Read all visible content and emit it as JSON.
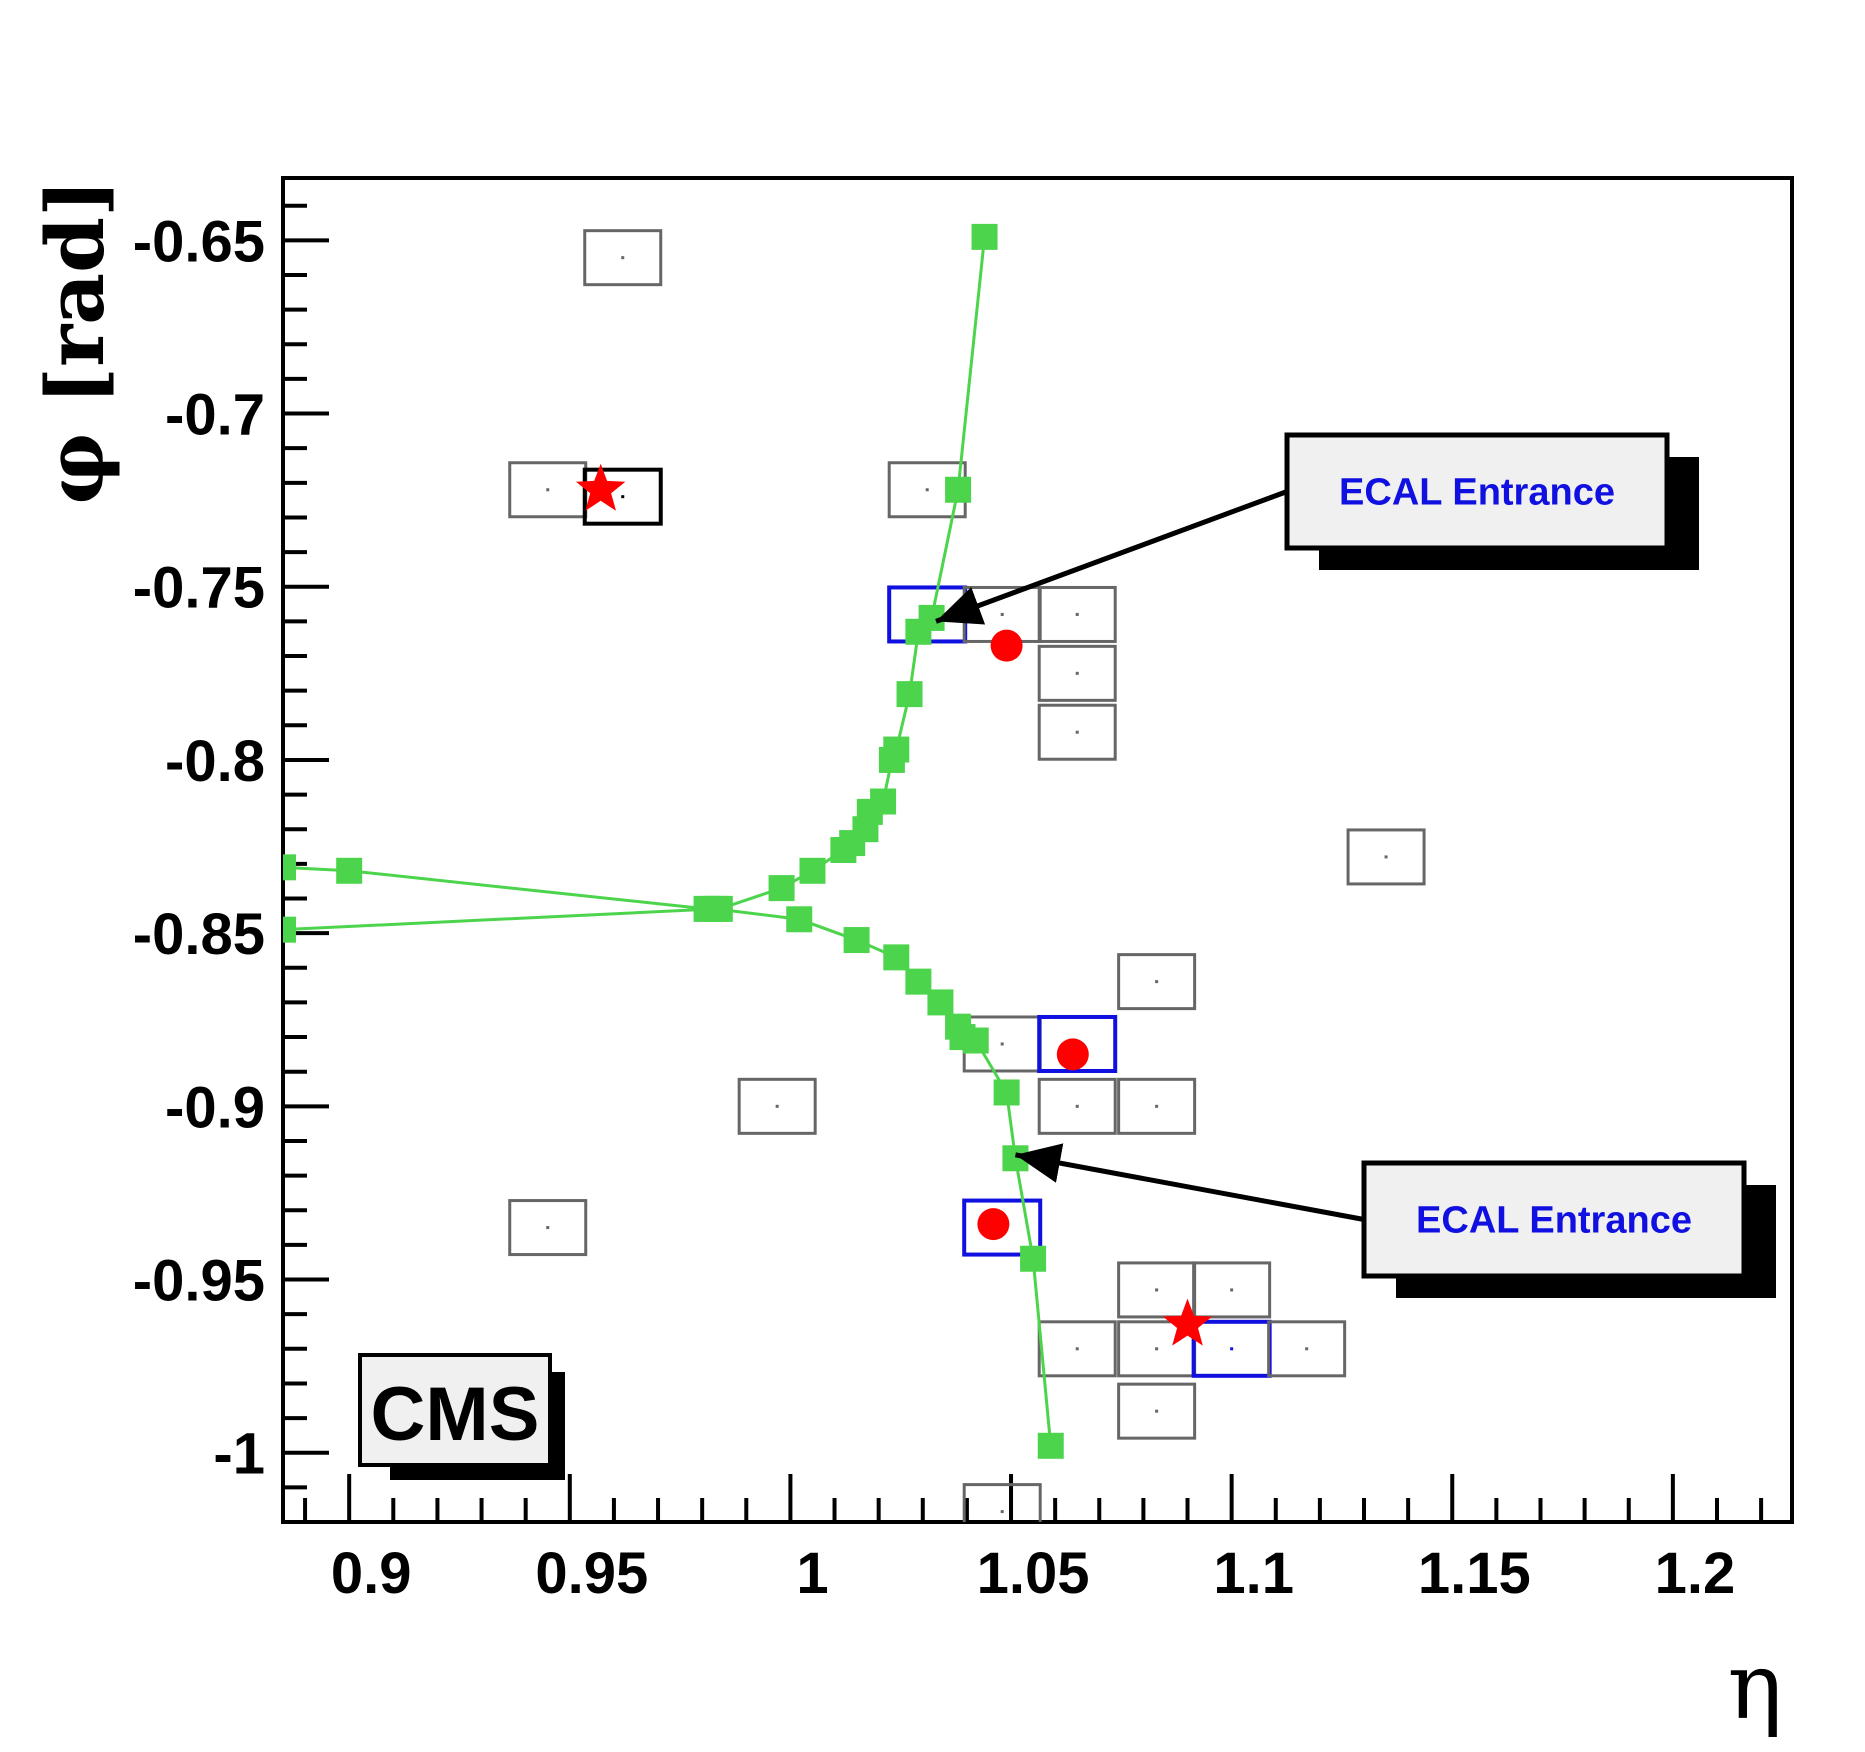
{
  "chart_data": {
    "type": "scatter",
    "xlabel": "η",
    "ylabel": "φ [rad]",
    "xlim": [
      0.88,
      1.222
    ],
    "ylim": [
      -1.02,
      -0.632
    ],
    "x_ticks": [
      "0.9",
      "0.95",
      "1",
      "1.05",
      "1.1",
      "1.15",
      "1.2"
    ],
    "x_tick_values": [
      0.9,
      0.95,
      1.0,
      1.05,
      1.1,
      1.15,
      1.2
    ],
    "y_ticks": [
      "-0.65",
      "-0.7",
      "-0.75",
      "-0.8",
      "-0.85",
      "-0.9",
      "-0.95",
      "-1"
    ],
    "y_tick_values": [
      -0.65,
      -0.7,
      -0.75,
      -0.8,
      -0.85,
      -0.9,
      -0.95,
      -1.0
    ],
    "colors": {
      "track": "#4cd44c",
      "crystal_gray": "#666666",
      "crystal_blue": "#1010e0",
      "crystal_black": "#000000",
      "marker_red": "#ff0000",
      "callout_bg": "#f0f0f0"
    },
    "tracks": [
      {
        "x": [
          1.039,
          1.033,
          1.027,
          1.024,
          1.022,
          1.019,
          1.018,
          1.016,
          1.013,
          1.012,
          1.009,
          1.007,
          1.0,
          0.993,
          0.979,
          0.976,
          0.895,
          0.88
        ],
        "y": [
          -0.649,
          -0.722,
          -0.759,
          -0.763,
          -0.781,
          -0.797,
          -0.8,
          -0.812,
          -0.815,
          -0.82,
          -0.824,
          -0.826,
          -0.832,
          -0.837,
          -0.843,
          -0.843,
          -0.832,
          -0.831
        ]
      },
      {
        "x": [
          0.88,
          0.978,
          0.997,
          1.01,
          1.019,
          1.024,
          1.029,
          1.033,
          1.034,
          1.037,
          1.044,
          1.046,
          1.05,
          1.054
        ],
        "y": [
          -0.849,
          -0.843,
          -0.846,
          -0.852,
          -0.857,
          -0.864,
          -0.87,
          -0.877,
          -0.88,
          -0.881,
          -0.896,
          -0.915,
          -0.944,
          -0.998
        ]
      }
    ],
    "crystals": [
      {
        "x": 0.957,
        "y": -0.655,
        "color": "gray"
      },
      {
        "x": 0.94,
        "y": -0.722,
        "color": "gray"
      },
      {
        "x": 0.957,
        "y": -0.724,
        "color": "black"
      },
      {
        "x": 1.026,
        "y": -0.722,
        "color": "gray"
      },
      {
        "x": 1.026,
        "y": -0.758,
        "color": "blue"
      },
      {
        "x": 1.043,
        "y": -0.758,
        "color": "gray"
      },
      {
        "x": 1.06,
        "y": -0.758,
        "color": "gray"
      },
      {
        "x": 1.06,
        "y": -0.775,
        "color": "gray"
      },
      {
        "x": 1.06,
        "y": -0.792,
        "color": "gray"
      },
      {
        "x": 1.13,
        "y": -0.828,
        "color": "gray"
      },
      {
        "x": 1.078,
        "y": -0.864,
        "color": "gray"
      },
      {
        "x": 1.043,
        "y": -0.882,
        "color": "gray"
      },
      {
        "x": 1.06,
        "y": -0.882,
        "color": "blue"
      },
      {
        "x": 1.06,
        "y": -0.9,
        "color": "gray"
      },
      {
        "x": 1.078,
        "y": -0.9,
        "color": "gray"
      },
      {
        "x": 0.992,
        "y": -0.9,
        "color": "gray"
      },
      {
        "x": 0.94,
        "y": -0.935,
        "color": "gray"
      },
      {
        "x": 1.043,
        "y": -0.935,
        "color": "blue"
      },
      {
        "x": 1.078,
        "y": -0.953,
        "color": "gray"
      },
      {
        "x": 1.095,
        "y": -0.953,
        "color": "gray"
      },
      {
        "x": 1.06,
        "y": -0.97,
        "color": "gray"
      },
      {
        "x": 1.078,
        "y": -0.97,
        "color": "gray"
      },
      {
        "x": 1.095,
        "y": -0.97,
        "color": "blue"
      },
      {
        "x": 1.112,
        "y": -0.97,
        "color": "gray"
      },
      {
        "x": 1.078,
        "y": -0.988,
        "color": "gray"
      },
      {
        "x": 1.043,
        "y": -1.017,
        "color": "gray"
      }
    ],
    "circles": [
      {
        "x": 1.044,
        "y": -0.767
      },
      {
        "x": 1.059,
        "y": -0.885
      },
      {
        "x": 1.041,
        "y": -0.934
      }
    ],
    "stars": [
      {
        "x": 0.952,
        "y": -0.722
      },
      {
        "x": 1.085,
        "y": -0.963
      }
    ],
    "annotations": [
      {
        "text": "ECAL Entrance",
        "target_x": 1.028,
        "target_y": -0.76
      },
      {
        "text": "ECAL Entrance",
        "target_x": 1.046,
        "target_y": -0.914
      }
    ],
    "label": "CMS"
  }
}
